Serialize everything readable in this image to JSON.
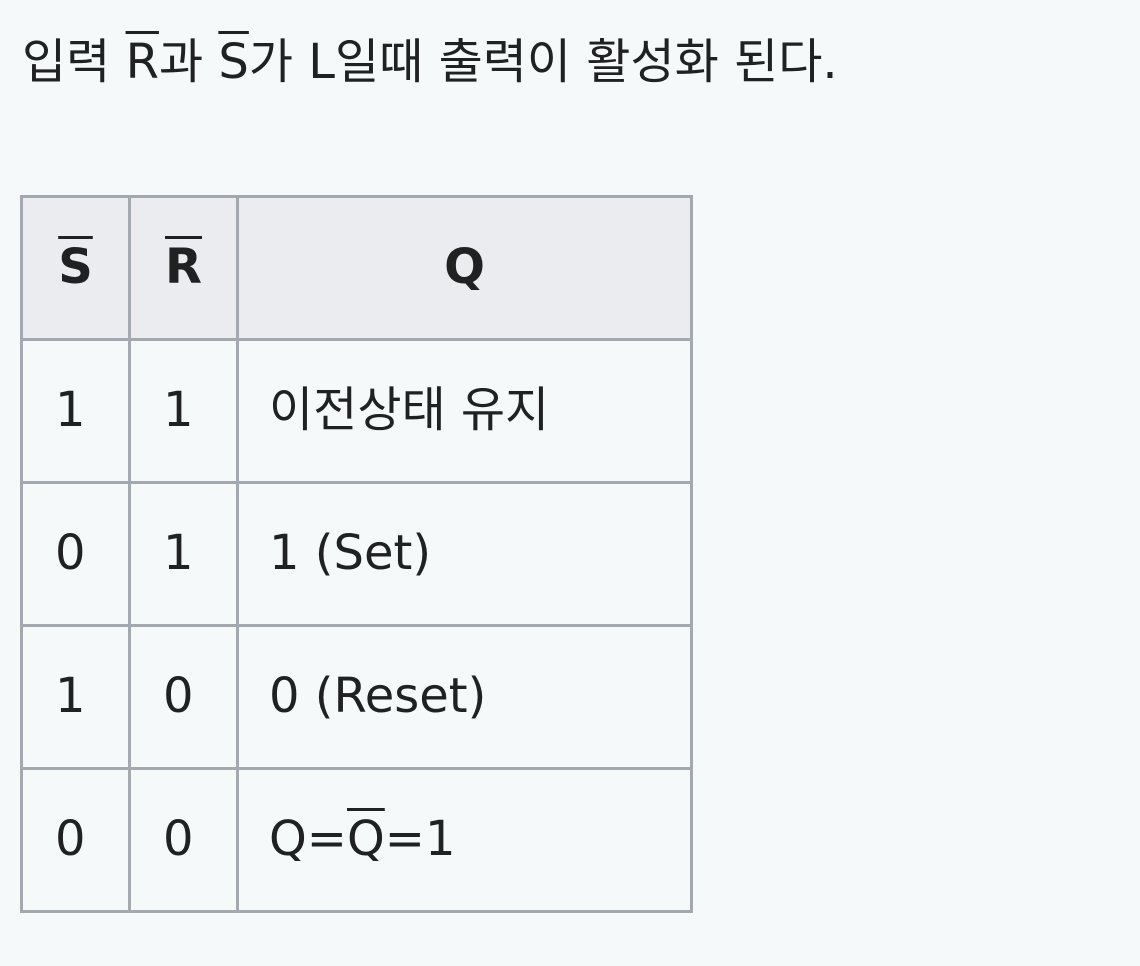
{
  "intro": {
    "part1": "입력 ",
    "r_bar": "R",
    "part2": "과 ",
    "s_bar": "S",
    "part3": "가 L일때 출력이 활성화 된다."
  },
  "table": {
    "headers": {
      "s_bar": "S",
      "r_bar": "R",
      "q": "Q"
    },
    "rows": [
      {
        "s": "1",
        "r": "1",
        "q": "이전상태 유지"
      },
      {
        "s": "0",
        "r": "1",
        "q": "1 (Set)"
      },
      {
        "s": "1",
        "r": "0",
        "q": "0 (Reset)"
      },
      {
        "s": "0",
        "r": "0",
        "q_pre": "Q=",
        "q_bar": "Q",
        "q_post": "=1"
      }
    ]
  }
}
